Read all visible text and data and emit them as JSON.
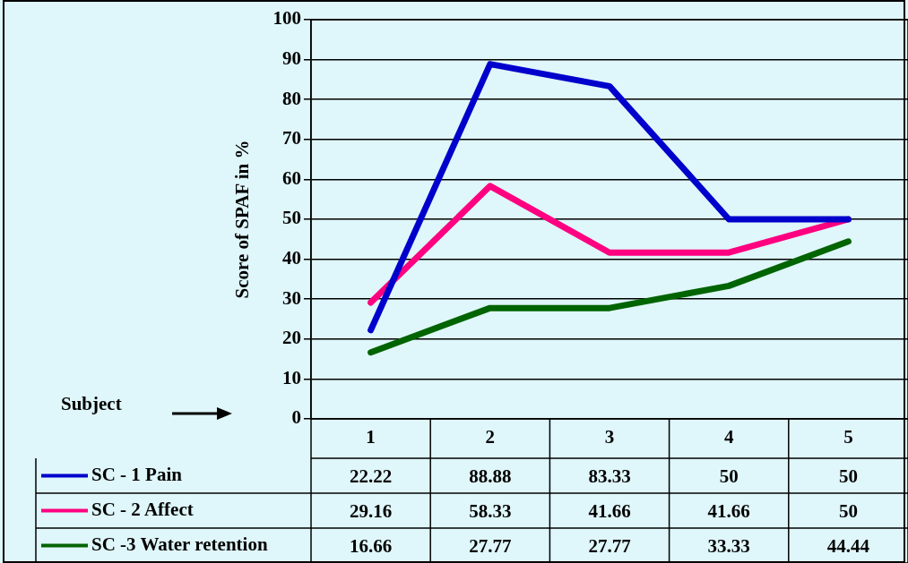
{
  "chart_data": {
    "type": "line",
    "ylabel": "Score of SPAF in %",
    "categories": [
      "1",
      "2",
      "3",
      "4",
      "5"
    ],
    "series": [
      {
        "name": "SC - 1 Pain",
        "color": "#0000cc",
        "values": [
          22.22,
          88.88,
          83.33,
          50,
          50
        ]
      },
      {
        "name": "SC - 2 Affect",
        "color": "#ff0080",
        "values": [
          29.16,
          58.33,
          41.66,
          41.66,
          50
        ]
      },
      {
        "name": "SC -3 Water retention",
        "color": "#006400",
        "values": [
          16.66,
          27.77,
          27.77,
          33.33,
          44.44
        ]
      }
    ],
    "ylim": [
      0,
      100
    ],
    "yticks": [
      0,
      10,
      20,
      30,
      40,
      50,
      60,
      70,
      80,
      90,
      100
    ],
    "grid": "y",
    "legend": "bottom",
    "data_labels": true,
    "annotations": [
      "Subject"
    ]
  }
}
